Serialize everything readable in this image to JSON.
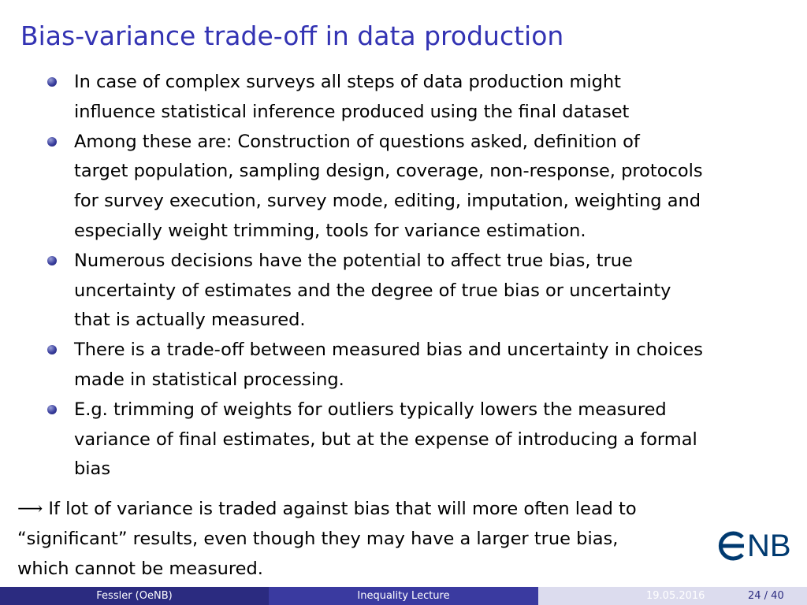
{
  "slide": {
    "title": "Bias-variance trade-off in data production",
    "bullets": [
      {
        "lines": [
          "In case of complex surveys all steps of data production might",
          "influence statistical inference produced using the final dataset"
        ]
      },
      {
        "lines": [
          "Among these are: Construction of questions asked, definition of",
          "target population, sampling design, coverage, non-response, protocols",
          "for survey execution, survey mode, editing, imputation, weighting and",
          "especially weight trimming, tools for variance estimation."
        ]
      },
      {
        "lines": [
          "Numerous decisions have the potential to affect true bias, true",
          "uncertainty of estimates and the degree of true bias or uncertainty",
          "that is actually measured."
        ]
      },
      {
        "lines": [
          "There is a trade-off between measured bias and uncertainty in choices",
          "made in statistical processing."
        ]
      },
      {
        "lines": [
          "E.g. trimming of weights for outliers typically lowers the measured",
          "variance of final estimates, but at the expense of introducing a formal",
          "bias"
        ]
      }
    ],
    "conclusion": {
      "arrow": "⟶",
      "lines": [
        "If lot of variance is traded against bias that will more often lead to",
        "“significant” results, even though they may have a larger true bias,",
        "which cannot be measured."
      ]
    }
  },
  "logo": {
    "text": "NB",
    "color": "#003a70"
  },
  "footer": {
    "author": "Fessler  (OeNB)",
    "title": "Inequality Lecture",
    "date": "19.05.2016",
    "page": "24 / 40"
  },
  "colors": {
    "title": "#3333b3",
    "footer_dark": "#2b2b80",
    "footer_mid": "#3a3aa0",
    "footer_light": "#dcdcee"
  }
}
